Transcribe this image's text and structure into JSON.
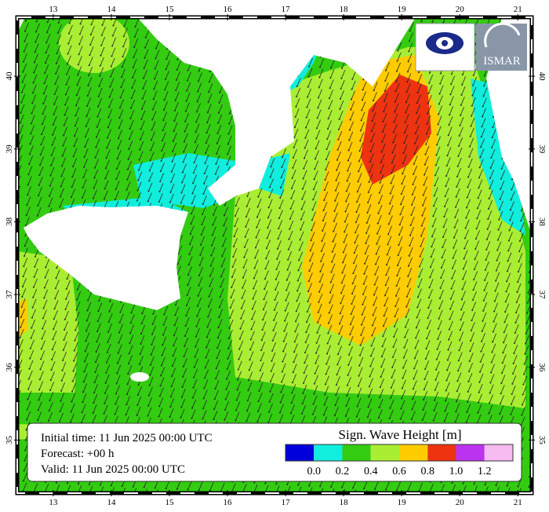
{
  "map": {
    "lon_ticks": [
      13,
      14,
      15,
      16,
      17,
      18,
      19,
      20,
      21
    ],
    "lat_ticks": [
      35,
      36,
      37,
      38,
      39,
      40
    ],
    "lon_range": [
      12.38,
      21.24
    ],
    "lat_range": [
      34.27,
      40.81
    ]
  },
  "info": {
    "initial": "Initial time: 11 Jun 2025 00:00 UTC",
    "forecast": "Forecast: +00 h",
    "valid": "Valid: 11 Jun 2025 00:00 UTC"
  },
  "legend": {
    "title": "Sign. Wave Height [m]",
    "colors": [
      "#0000dd",
      "#11eedd",
      "#33cc11",
      "#aaee33",
      "#ffcc00",
      "#ee3311",
      "#bb33ee",
      "#f5bbf0"
    ],
    "labels": [
      "0.0",
      "0.2",
      "0.4",
      "0.6",
      "0.8",
      "1.0",
      "1.2"
    ]
  },
  "logos": {
    "right": "ISMAR"
  }
}
